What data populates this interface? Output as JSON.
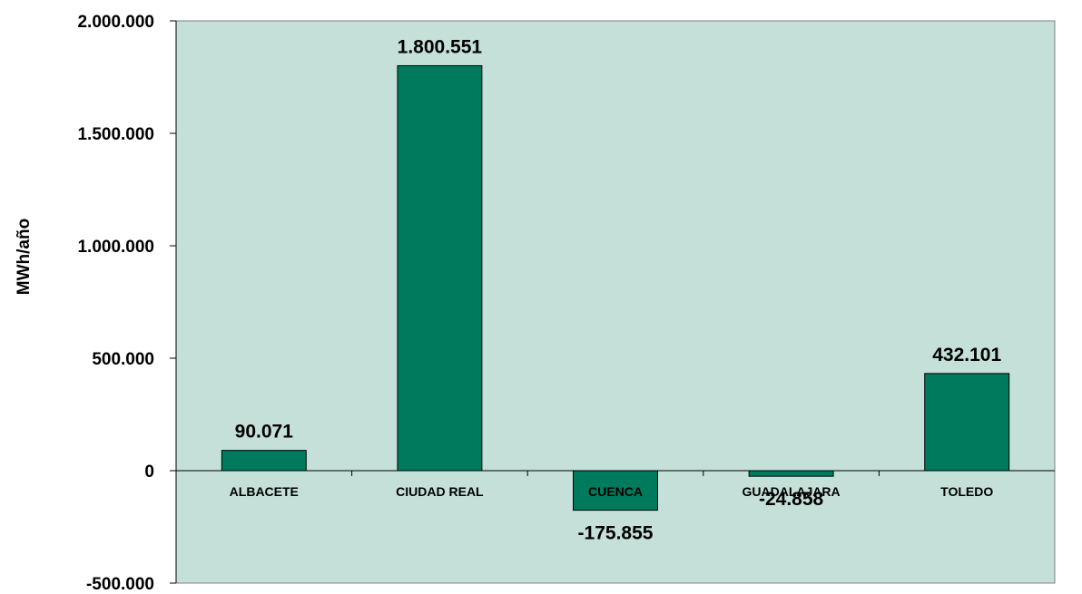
{
  "chart_data": {
    "type": "bar",
    "title": "",
    "xlabel": "",
    "ylabel": "MWh/año",
    "categories": [
      "ALBACETE",
      "CIUDAD REAL",
      "CUENCA",
      "GUADALAJARA",
      "TOLEDO"
    ],
    "values": [
      90071,
      1800551,
      -175855,
      -24858,
      432101
    ],
    "data_labels": [
      "90.071",
      "1.800.551",
      "-175.855",
      "-24.858",
      "432.101"
    ],
    "y_ticks": [
      2000000,
      1500000,
      1000000,
      500000,
      0,
      -500000
    ],
    "y_tick_labels": [
      "2.000.000",
      "1.500.000",
      "1.000.000",
      "500.000",
      "0",
      "-500.000"
    ],
    "ylim": [
      -500000,
      2000000
    ],
    "grid": false,
    "legend": "none",
    "colors": {
      "plot_background": "#c5e0d8",
      "bar_fill": "#007a5c",
      "bar_stroke": "#000000"
    }
  }
}
